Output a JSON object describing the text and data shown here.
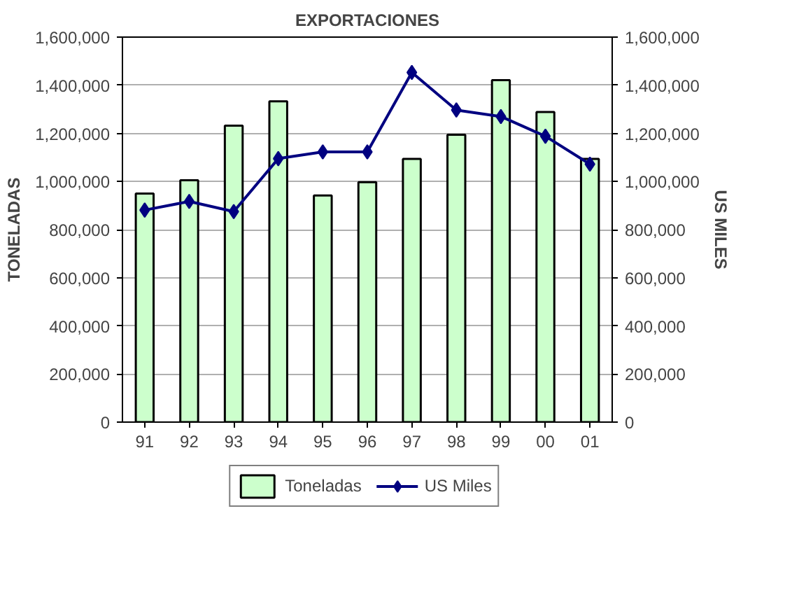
{
  "chart_data": {
    "type": "bar",
    "title": "EXPORTACIONES",
    "ylabel": "TONELADAS",
    "y2label": "US MILES",
    "categories": [
      "91",
      "92",
      "93",
      "94",
      "95",
      "96",
      "97",
      "98",
      "99",
      "00",
      "01"
    ],
    "series": [
      {
        "name": "Toneladas",
        "color": "#ccffcc",
        "values": [
          950000,
          1005000,
          1232000,
          1333000,
          942000,
          997000,
          1094000,
          1194000,
          1421000,
          1289000,
          1094000
        ]
      },
      {
        "name": "US Miles",
        "type": "line",
        "axis": "y2",
        "color": "#000080",
        "marker": "diamond",
        "values": [
          881000,
          917000,
          875000,
          1095000,
          1123000,
          1123000,
          1453000,
          1297000,
          1270000,
          1188000,
          1072000
        ]
      }
    ],
    "ylim": [
      0,
      1600000
    ],
    "yticks": [
      {
        "value": 0,
        "label": "0"
      },
      {
        "value": 200000,
        "label": "200,000"
      },
      {
        "value": 400000,
        "label": "400,000"
      },
      {
        "value": 600000,
        "label": "600,000"
      },
      {
        "value": 800000,
        "label": "800,000"
      },
      {
        "value": 1000000,
        "label": "1,000,000"
      },
      {
        "value": 1200000,
        "label": "1,200,000"
      },
      {
        "value": 1400000,
        "label": "1,400,000"
      },
      {
        "value": 1600000,
        "label": "1,600,000"
      }
    ],
    "y2lim": [
      0,
      1600000
    ],
    "y2ticks": [
      {
        "value": 0,
        "label": "0"
      },
      {
        "value": 200000,
        "label": "200,000"
      },
      {
        "value": 400000,
        "label": "400,000"
      },
      {
        "value": 600000,
        "label": "600,000"
      },
      {
        "value": 800000,
        "label": "800,000"
      },
      {
        "value": 1000000,
        "label": "1,000,000"
      },
      {
        "value": 1200000,
        "label": "1,200,000"
      },
      {
        "value": 1400000,
        "label": "1,400,000"
      },
      {
        "value": 1600000,
        "label": "1,600,000"
      }
    ],
    "grid": "y",
    "legend": "bottom"
  }
}
